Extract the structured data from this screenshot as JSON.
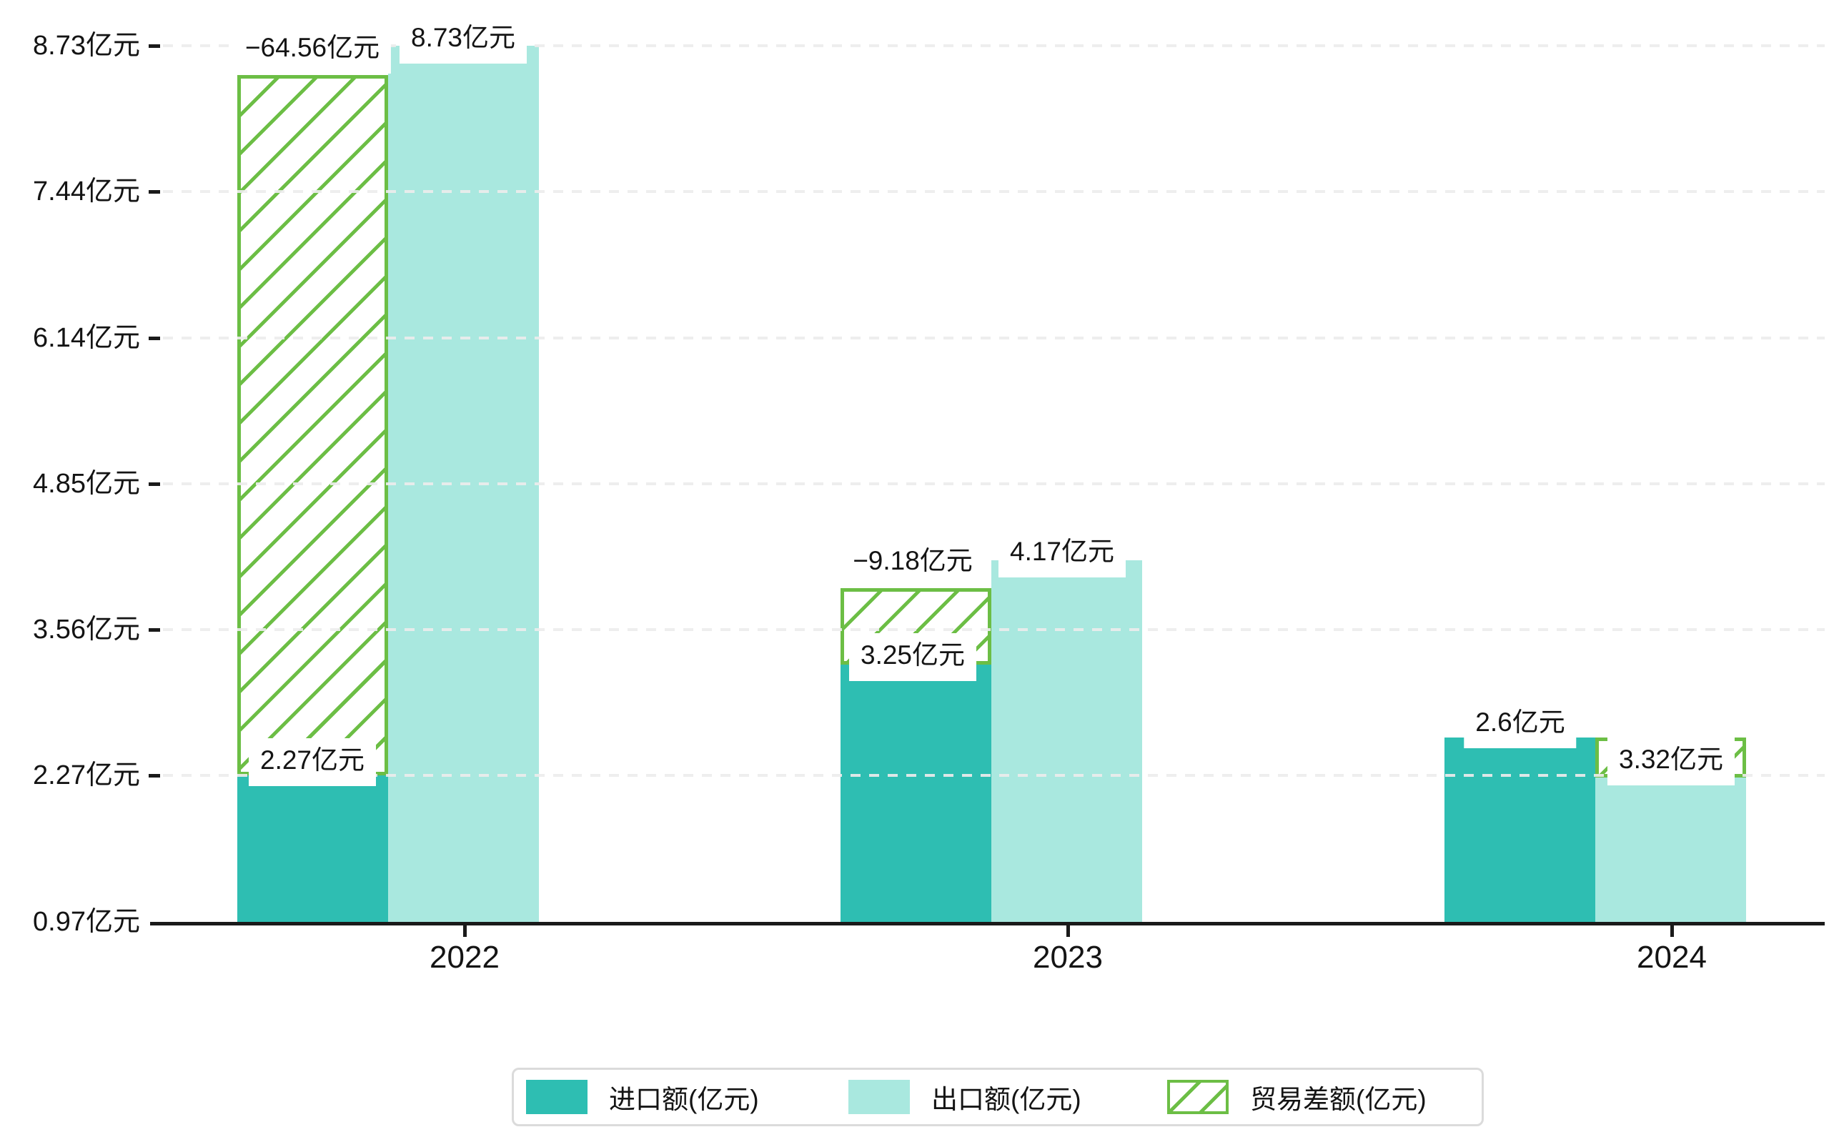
{
  "chart_data": {
    "type": "bar",
    "title": "",
    "categories": [
      "2022",
      "2023",
      "2024"
    ],
    "series": [
      {
        "name": "进口额(亿元)",
        "role": "import",
        "color": "#2EBEB2",
        "values": [
          2.27,
          3.25,
          2.6
        ],
        "data_labels": [
          "2.27亿元",
          "3.25亿元",
          "2.6亿元"
        ]
      },
      {
        "name": "出口额(亿元)",
        "role": "export",
        "color": "#A9E8DF",
        "values": [
          8.73,
          4.17,
          3.32
        ],
        "data_labels": [
          "8.73亿元",
          "4.17亿元",
          "3.32亿元"
        ]
      },
      {
        "name": "贸易差额(亿元)",
        "role": "trade-balance",
        "color": "#6CBE45",
        "pattern": "diagonal-hatch",
        "values": [
          -64.56,
          -9.18,
          null
        ],
        "data_labels": [
          "−64.56亿元",
          "−9.18亿元",
          null
        ]
      }
    ],
    "y_axis": {
      "unit": "亿元",
      "tick_values": [
        0.97,
        2.27,
        3.56,
        4.85,
        6.14,
        7.44,
        8.73
      ],
      "tick_labels": [
        "0.97亿元",
        "2.27亿元",
        "3.56亿元",
        "4.85亿元",
        "6.14亿元",
        "7.44亿元",
        "8.73亿元"
      ],
      "range": [
        0.97,
        8.73
      ],
      "gridlines": "dashed"
    },
    "x_axis": {
      "tick_labels": [
        "2022",
        "2023",
        "2024"
      ]
    },
    "legend": {
      "position": "bottom",
      "entries": [
        "进口额(亿元)",
        "出口额(亿元)",
        "贸易差额(亿元)"
      ]
    },
    "colors": {
      "import_bar": "#2EBEB2",
      "export_bar": "#A9E8DF",
      "trade_balance_green": "#6CBE45",
      "axis": "#1A1A1A",
      "gridline": "#ECECEC",
      "text": "#141414",
      "label_background": "#FFFFFF",
      "legend_border": "#DBDBDB",
      "background": "#FFFFFF"
    }
  }
}
